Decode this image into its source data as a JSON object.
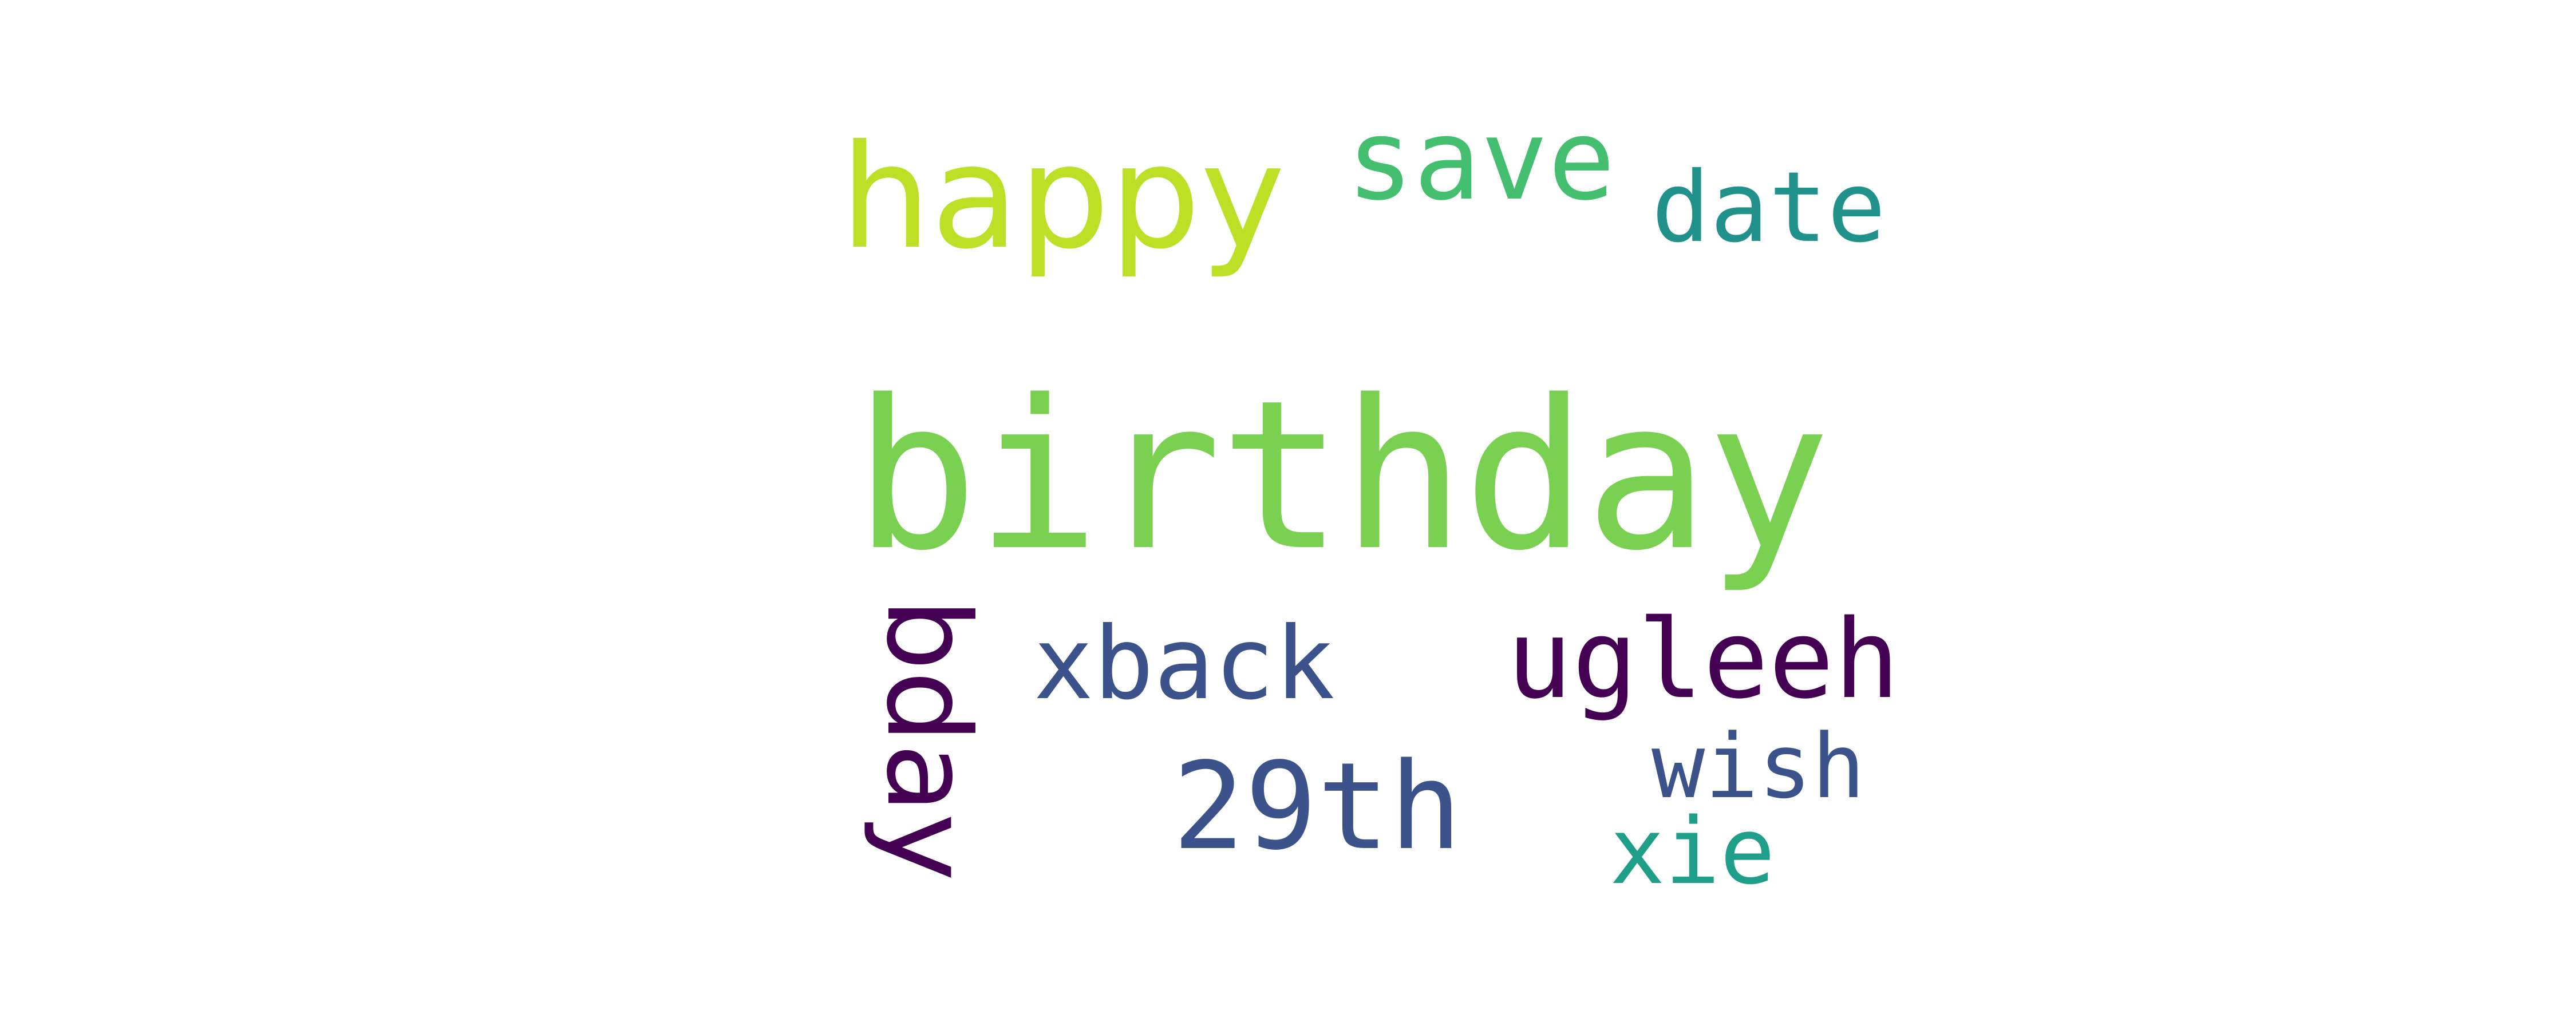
{
  "words": {
    "birthday": {
      "text": "birthday",
      "color": "#7ad151"
    },
    "happy": {
      "text": "happy",
      "color": "#bddf26"
    },
    "save": {
      "text": "save",
      "color": "#44bf70"
    },
    "date": {
      "text": "date",
      "color": "#21918c"
    },
    "bday": {
      "text": "bday",
      "color": "#440154"
    },
    "xback": {
      "text": "xback",
      "color": "#3b528b"
    },
    "ugleeh": {
      "text": "ugleeh",
      "color": "#440154"
    },
    "29th": {
      "text": "29th",
      "color": "#3b528b"
    },
    "wish": {
      "text": "wish",
      "color": "#3b528b"
    },
    "xie": {
      "text": "xie",
      "color": "#1f9e89"
    }
  }
}
